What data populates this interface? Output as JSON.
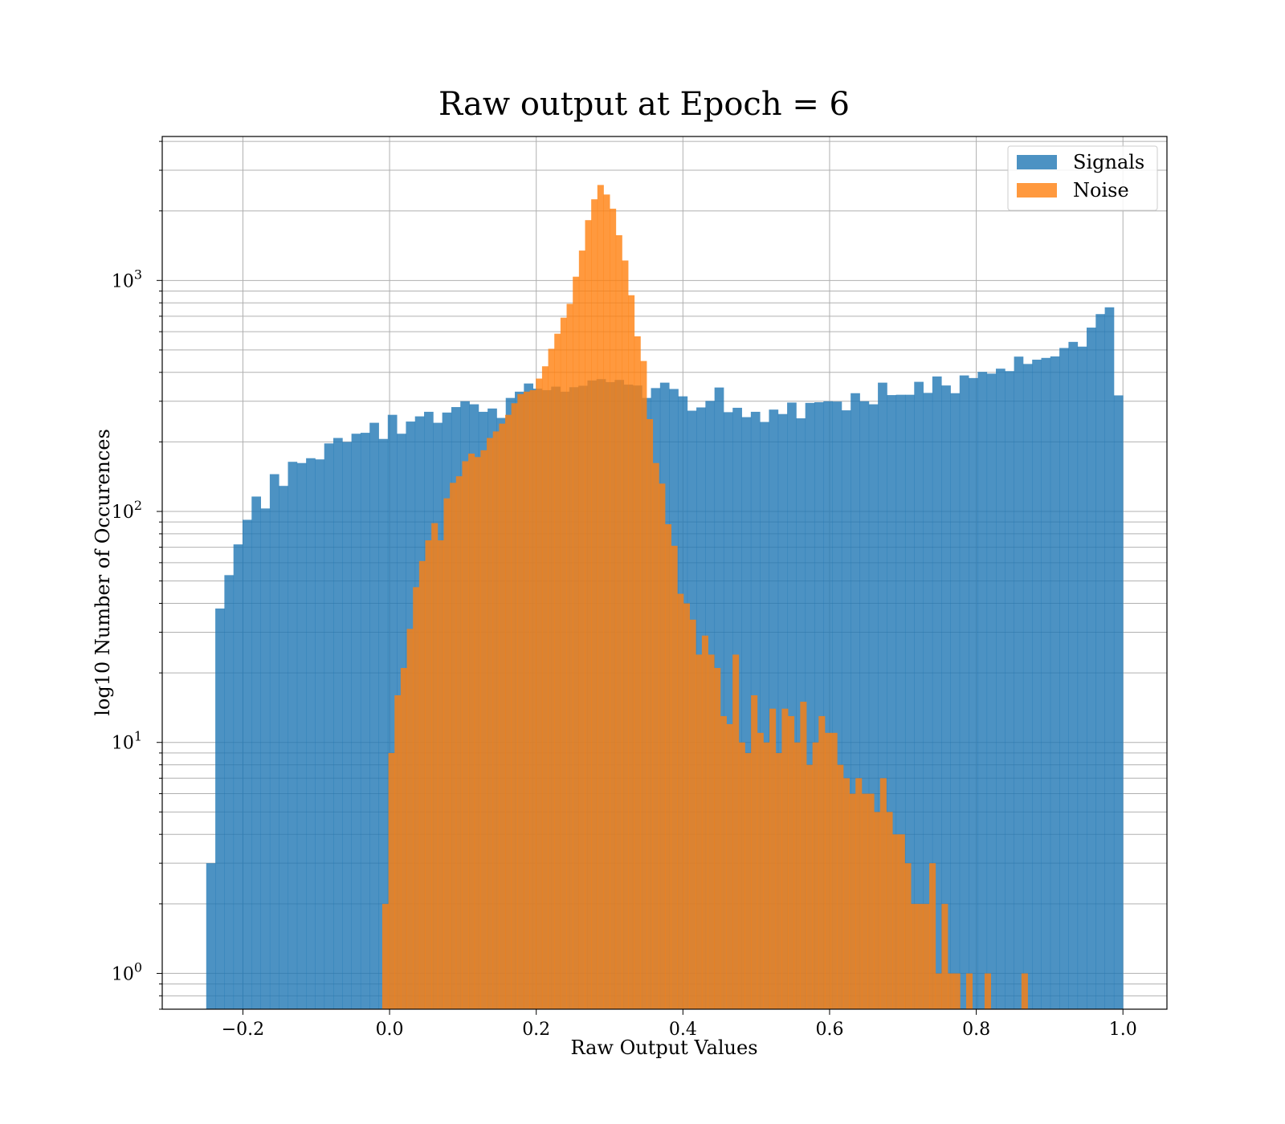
{
  "chart_data": {
    "type": "histogram",
    "title": "Raw output at Epoch = 6",
    "xlabel": "Raw Output Values",
    "ylabel": "log10 Number of Occurences",
    "x_scale": "linear",
    "y_scale": "log",
    "xlim": [
      -0.31,
      1.06
    ],
    "ylim": [
      0.7,
      4200
    ],
    "x_ticks": [
      -0.2,
      0.0,
      0.2,
      0.4,
      0.6,
      0.8,
      1.0
    ],
    "x_tick_labels": [
      "−0.2",
      "0.0",
      "0.2",
      "0.4",
      "0.6",
      "0.8",
      "1.0"
    ],
    "y_ticks": [
      1,
      10,
      100,
      1000
    ],
    "y_tick_labels": [
      [
        "10",
        "0"
      ],
      [
        "10",
        "1"
      ],
      [
        "10",
        "2"
      ],
      [
        "10",
        "3"
      ]
    ],
    "grid": true,
    "legend_position": "top-right",
    "series": [
      {
        "name": "Signals",
        "color": "#1f77b4",
        "opacity": 0.8,
        "bin_start": -0.25,
        "bin_end": 1.0,
        "values": [
          3,
          38,
          53,
          72,
          92,
          116,
          103,
          145,
          129,
          164,
          162,
          170,
          168,
          197,
          208,
          200,
          217,
          219,
          242,
          206,
          262,
          217,
          245,
          258,
          270,
          242,
          268,
          283,
          300,
          291,
          270,
          279,
          254,
          310,
          330,
          358,
          340,
          335,
          347,
          330,
          345,
          350,
          369,
          374,
          363,
          371,
          354,
          351,
          310,
          342,
          361,
          339,
          315,
          273,
          282,
          301,
          344,
          269,
          281,
          256,
          270,
          244,
          276,
          264,
          296,
          253,
          295,
          297,
          300,
          299,
          274,
          325,
          300,
          291,
          361,
          319,
          320,
          320,
          364,
          326,
          384,
          351,
          325,
          388,
          378,
          402,
          395,
          415,
          405,
          468,
          435,
          454,
          462,
          469,
          510,
          542,
          517,
          625,
          715,
          765,
          318
        ]
      },
      {
        "name": "Noise",
        "color": "#ff7f0e",
        "opacity": 0.8,
        "bin_start": -0.01,
        "bin_end": 0.87,
        "values": [
          2,
          9,
          16,
          21,
          31,
          47,
          61,
          75,
          89,
          75,
          114,
          133,
          142,
          165,
          178,
          172,
          184,
          208,
          222,
          240,
          262,
          294,
          322,
          330,
          335,
          376,
          425,
          506,
          588,
          690,
          792,
          1038,
          1347,
          1824,
          2246,
          2590,
          2355,
          2045,
          1570,
          1220,
          863,
          573,
          448,
          251,
          162,
          132,
          88,
          71,
          44,
          40,
          34,
          24,
          29,
          24,
          21,
          13,
          12,
          24,
          10,
          9,
          16,
          11,
          10,
          14,
          9,
          14,
          13,
          10,
          15,
          8,
          10,
          13,
          11,
          11,
          8,
          7,
          6,
          7,
          6,
          6,
          5,
          7,
          5,
          4,
          4,
          3,
          2,
          2,
          2,
          3,
          1,
          2,
          1,
          1,
          0.5,
          1,
          0.5,
          0.5,
          1,
          0.5,
          0.5,
          0.5,
          0.5,
          0.5,
          1
        ]
      }
    ]
  }
}
